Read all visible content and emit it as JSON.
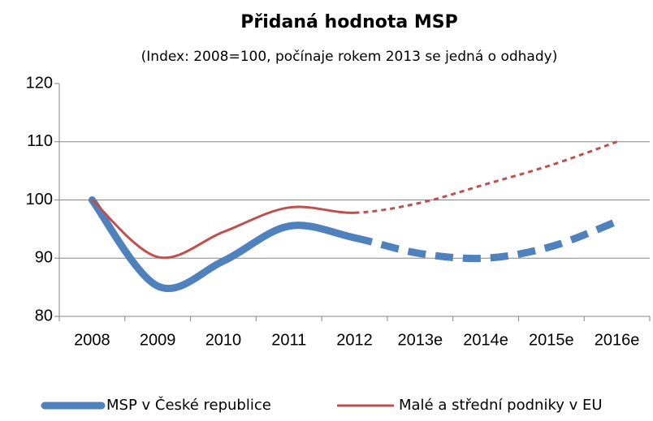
{
  "chart_data": {
    "type": "line",
    "title": "Přidaná hodnota MSP",
    "subtitle": "(Index: 2008=100, počínaje rokem 2013 se jedná o odhady)",
    "categories": [
      "2008",
      "2009",
      "2010",
      "2011",
      "2012",
      "2013e",
      "2014e",
      "2015e",
      "2016e"
    ],
    "dashed_from": "2013e",
    "series": [
      {
        "name": "MSP v České republice",
        "color": "#4f81bd",
        "values": [
          100,
          85.2,
          89.5,
          95.5,
          93.5,
          90.8,
          90,
          92,
          96.3
        ]
      },
      {
        "name": "Malé a střední podniky v EU",
        "color": "#c0504d",
        "values": [
          100,
          90.2,
          94.5,
          98.7,
          97.8,
          99.5,
          102.7,
          106,
          110
        ]
      }
    ],
    "ylim": [
      80,
      120
    ],
    "yticks": [
      80,
      90,
      100,
      110,
      120
    ],
    "grid": true,
    "legend": "bottom"
  }
}
